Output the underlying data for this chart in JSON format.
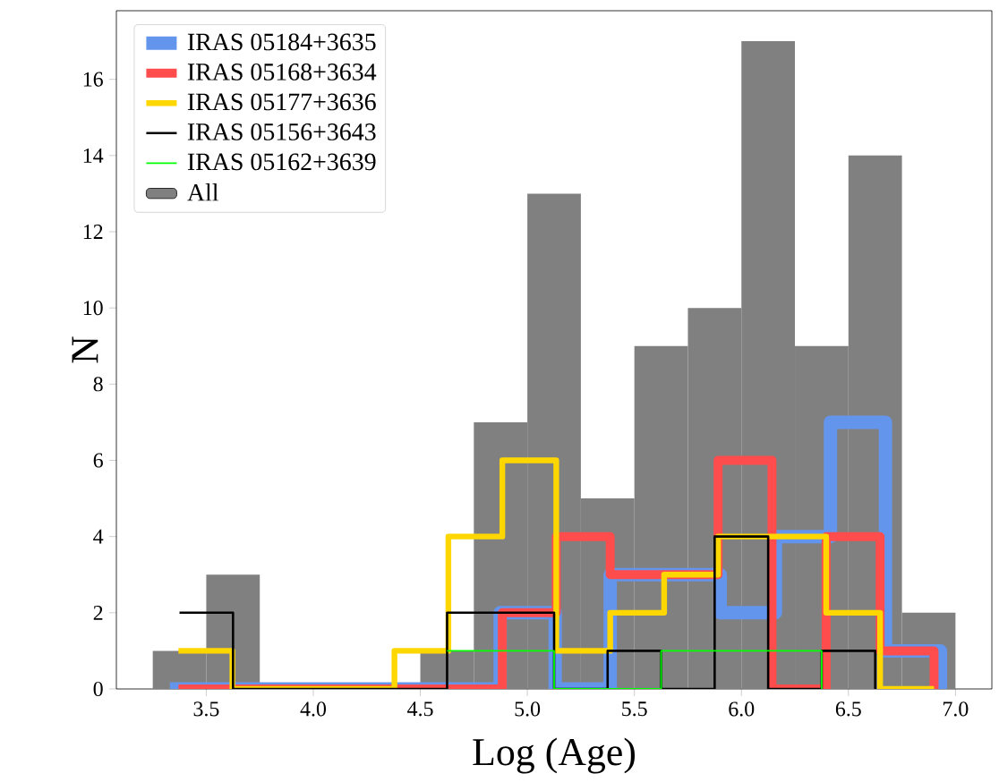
{
  "chart_data": {
    "type": "step",
    "xlabel": "Log (Age)",
    "ylabel": "N",
    "xlim": [
      3.08,
      7.17
    ],
    "ylim": [
      0,
      17.8
    ],
    "xticks": [
      3.5,
      {
        "value": 4,
        "label": "4.0"
      },
      4.5,
      {
        "value": 5,
        "label": "5.0"
      },
      5.5,
      {
        "value": 6,
        "label": "6.0"
      },
      6.5,
      {
        "value": 7,
        "label": "7.0"
      }
    ],
    "yticks": [
      0,
      2,
      4,
      6,
      8,
      10,
      12,
      14,
      16
    ],
    "legend": "top left",
    "grid": false,
    "series": [
      {
        "name": "IRAS 05184+3635",
        "color": "#6495ed",
        "x": [
          3.33,
          3.587,
          3.844,
          4.101,
          4.359,
          4.616,
          4.873,
          5.13,
          5.387,
          5.644,
          5.901,
          6.159,
          6.416,
          6.673,
          6.93
        ],
        "values": [
          0,
          0,
          0,
          0,
          0,
          0,
          2,
          0,
          3,
          3,
          2,
          4,
          7,
          1,
          0
        ]
      },
      {
        "name": "IRAS 05168+3634",
        "color": "#ff4c4c",
        "x": [
          3.37,
          3.622,
          3.874,
          4.126,
          4.379,
          4.631,
          4.883,
          5.135,
          5.387,
          5.639,
          5.891,
          6.143,
          6.396,
          6.648,
          6.9
        ],
        "values": [
          0,
          0,
          0,
          0,
          0,
          0,
          2,
          4,
          3,
          3,
          6,
          0,
          4,
          1,
          0
        ]
      },
      {
        "name": "IRAS 05177+3636",
        "color": "#ffd700",
        "x": [
          3.37,
          3.622,
          3.874,
          4.126,
          4.379,
          4.631,
          4.883,
          5.135,
          5.387,
          5.639,
          5.891,
          6.143,
          6.396,
          6.648,
          6.9
        ],
        "values": [
          1,
          0,
          0,
          0,
          1,
          4,
          6,
          1,
          2,
          3,
          4,
          4,
          2,
          0,
          0
        ]
      },
      {
        "name": "IRAS 05156+3643",
        "color": "#000000",
        "x": [
          3.375,
          3.625,
          3.875,
          4.125,
          4.375,
          4.625,
          4.875,
          5.125,
          5.375,
          5.625,
          5.875,
          6.125,
          6.375,
          6.625
        ],
        "values": [
          2,
          0,
          0,
          0,
          0,
          2,
          2,
          0,
          1,
          0,
          4,
          0,
          1,
          0
        ]
      },
      {
        "name": "IRAS 05162+3639",
        "color": "#00ff00",
        "x": [
          4.625,
          4.875,
          5.125,
          5.375,
          5.625,
          5.875,
          6.125,
          6.375
        ],
        "values": [
          1,
          1,
          0,
          0,
          1,
          1,
          1,
          0
        ]
      },
      {
        "name": "All",
        "type": "histogram",
        "color": "#808080",
        "bins": [
          3.25,
          3.5,
          3.75,
          4.0,
          4.25,
          4.5,
          4.75,
          5.0,
          5.25,
          5.5,
          5.75,
          6.0,
          6.25,
          6.5,
          6.75,
          7.0
        ],
        "values": [
          1,
          3,
          0,
          0,
          0,
          1,
          7,
          13,
          5,
          9,
          10,
          17,
          9,
          14,
          2
        ]
      }
    ]
  }
}
